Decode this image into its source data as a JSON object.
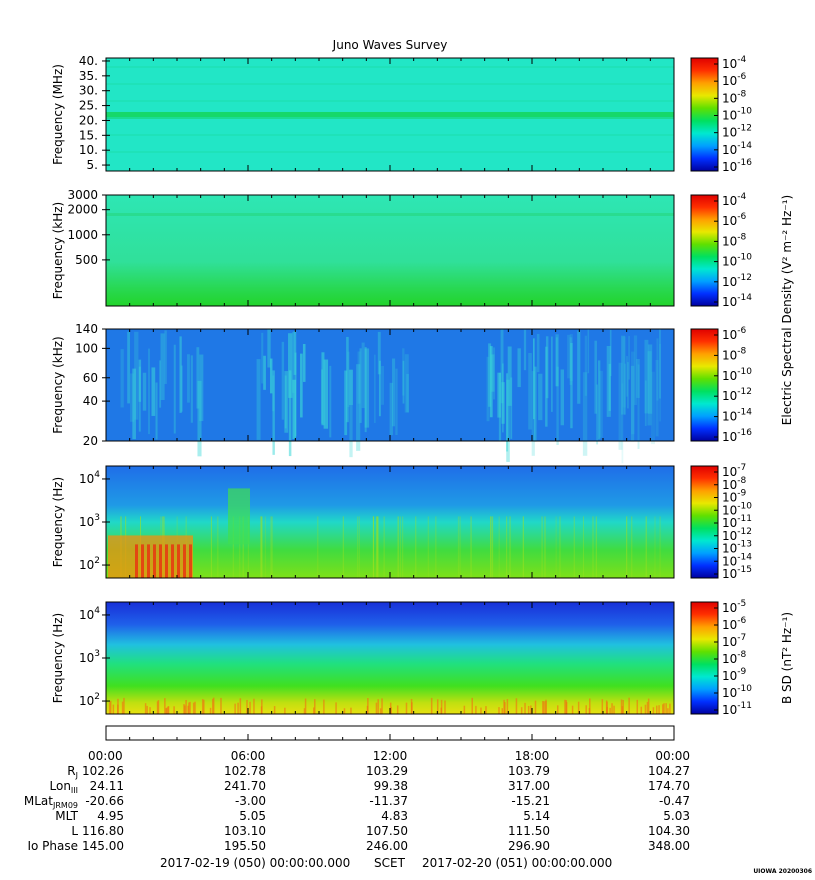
{
  "title": "Juno Waves Survey",
  "colors": {
    "frame": "#000000",
    "panel1_bg": "#22e6c6",
    "panel1_band": "#16d86a",
    "panel2_top": "#2ee6b4",
    "panel2_bottom": "#22d42a",
    "panel3_bg": "#1f78e6",
    "panel3_burst": "#3ad8d8",
    "panel4_top": "#1f6ee8",
    "panel4_mid": "#20d8c8",
    "panel4_bottom": "#7ee018",
    "panel5_top": "#1830d8",
    "panel5_bottom": "#e8e010"
  },
  "colorbar_ramp": [
    "#0000a0",
    "#0030ff",
    "#00a0ff",
    "#00e8d0",
    "#00e060",
    "#60e000",
    "#e8e800",
    "#ffa000",
    "#ff3000",
    "#e00000"
  ],
  "colorbar_labels": {
    "units_e": "Electric Spectral Density (V² m⁻² Hz⁻¹)",
    "units_b": "B SD (nT² Hz⁻¹)",
    "cb1": [
      "-4",
      "-6",
      "-8",
      "-10",
      "-12",
      "-14",
      "-16"
    ],
    "cb2": [
      "-4",
      "-6",
      "-8",
      "-10",
      "-12",
      "-14"
    ],
    "cb3": [
      "-6",
      "-8",
      "-10",
      "-12",
      "-14",
      "-16"
    ],
    "cb4": [
      "-7",
      "-8",
      "-9",
      "-10",
      "-11",
      "-12",
      "-13",
      "-14",
      "-15"
    ],
    "cb5": [
      "-5",
      "-6",
      "-7",
      "-8",
      "-9",
      "-10",
      "-11"
    ]
  },
  "chart_data": [
    {
      "type": "heatmap",
      "panel": 1,
      "ylabel": "Frequency (MHz)",
      "ylim": [
        3,
        41
      ],
      "yticks": [
        "40.",
        "35.",
        "30.",
        "25.",
        "20.",
        "15.",
        "10.",
        "5."
      ],
      "ytick_values": [
        40,
        35,
        30,
        25,
        20,
        15,
        10,
        5
      ],
      "scale": "linear"
    },
    {
      "type": "heatmap",
      "panel": 2,
      "ylabel": "Frequency (kHz)",
      "ylim": [
        140,
        3000
      ],
      "yticks": [
        "3000",
        "2000",
        "1000",
        "500"
      ],
      "ytick_values": [
        3000,
        2000,
        1000,
        500
      ],
      "scale": "log"
    },
    {
      "type": "heatmap",
      "panel": 3,
      "ylabel": "Frequency (kHz)",
      "ylim": [
        20,
        140
      ],
      "yticks": [
        "140",
        "100",
        "60",
        "40",
        "20"
      ],
      "ytick_values": [
        140,
        100,
        60,
        40,
        20
      ],
      "scale": "log"
    },
    {
      "type": "heatmap",
      "panel": 4,
      "ylabel": "Frequency (Hz)",
      "ylim": [
        50,
        20000
      ],
      "yticks": [
        "4",
        "3",
        "2"
      ],
      "ytick_values": [
        10000,
        1000,
        100
      ],
      "scale": "log"
    },
    {
      "type": "heatmap",
      "panel": 5,
      "ylabel": "Frequency (Hz)",
      "ylim": [
        50,
        20000
      ],
      "yticks": [
        "4",
        "3",
        "2"
      ],
      "ytick_values": [
        10000,
        1000,
        100
      ],
      "scale": "log"
    }
  ],
  "ephemeris": {
    "rows": [
      {
        "label": "R",
        "sub": "J",
        "values": [
          "102.26",
          "102.78",
          "103.29",
          "103.79",
          "104.27"
        ]
      },
      {
        "label": "Lon",
        "sub": "III",
        "values": [
          "24.11",
          "241.70",
          "99.38",
          "317.00",
          "174.70"
        ]
      },
      {
        "label": "MLat",
        "sub": "JRM09",
        "values": [
          "-20.66",
          "-3.00",
          "-11.37",
          "-15.21",
          "-0.47"
        ]
      },
      {
        "label": "MLT",
        "sub": "",
        "values": [
          "4.95",
          "5.05",
          "4.83",
          "5.14",
          "5.03"
        ]
      },
      {
        "label": "L",
        "sub": "",
        "values": [
          "116.80",
          "103.10",
          "107.50",
          "111.50",
          "104.30"
        ]
      },
      {
        "label": "Io Phase",
        "sub": "",
        "values": [
          "145.00",
          "195.50",
          "246.00",
          "296.90",
          "348.00"
        ]
      }
    ],
    "times": [
      "00:00",
      "06:00",
      "12:00",
      "18:00",
      "00:00"
    ]
  },
  "footer": {
    "start": "2017-02-19 (050) 00:00:00.000",
    "scet": "SCET",
    "end": "2017-02-20 (051) 00:00:00.000",
    "stamp": "UIOWA 20200306"
  }
}
